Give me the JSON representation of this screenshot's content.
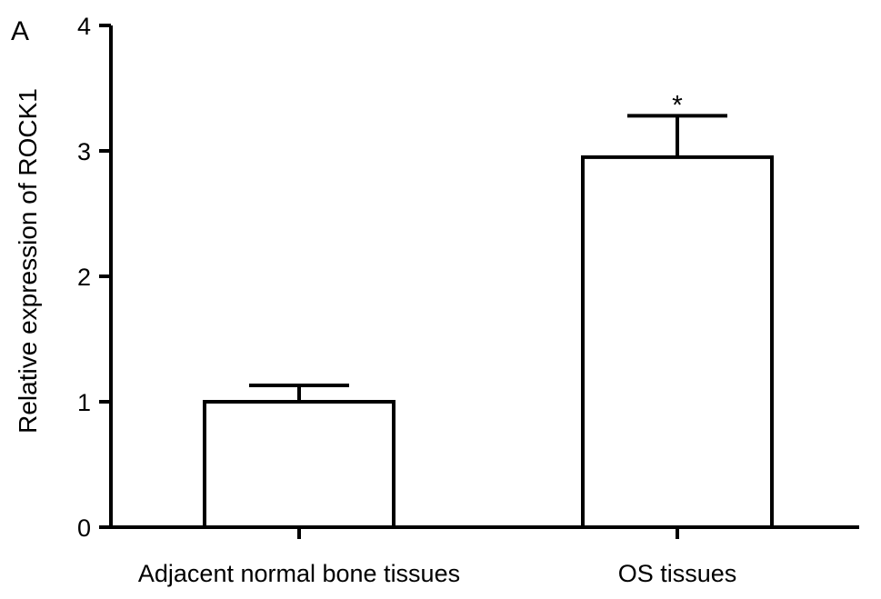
{
  "panel_label": "A",
  "chart_data": {
    "type": "bar",
    "title": "",
    "xlabel": "",
    "ylabel": "Relative expression of ROCK1",
    "ylim": [
      0,
      4
    ],
    "yticks": [
      0,
      1,
      2,
      3,
      4
    ],
    "grid": false,
    "legend": "none",
    "categories": [
      "Adjacent normal bone tissues",
      "OS tissues"
    ],
    "values": [
      1.0,
      2.95
    ],
    "error": [
      0.13,
      0.33
    ],
    "annotations": [
      "",
      "*"
    ],
    "bar_fill": "#ffffff",
    "bar_stroke": "#000000"
  }
}
